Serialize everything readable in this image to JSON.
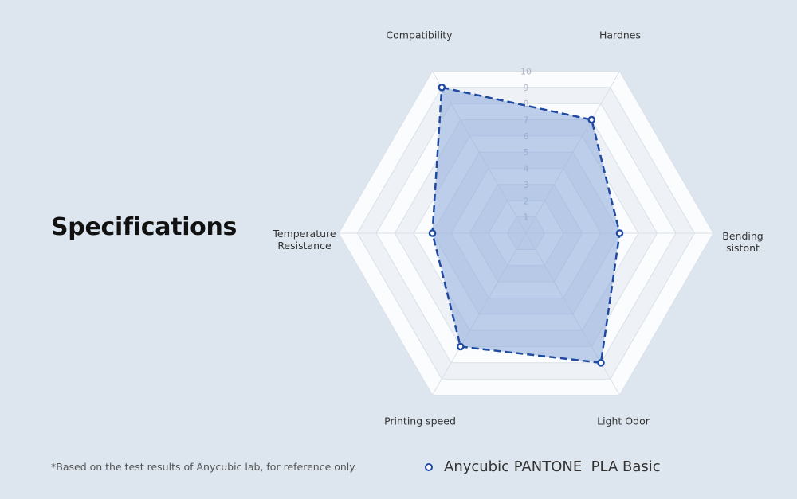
{
  "heading": "Specifications",
  "footnote": "*Based on the test results of Anycubic lab, for reference only.",
  "colors": {
    "series_stroke": "#1f4aa0",
    "series_fill": "#8aa8db",
    "grid": "#d9e0e8",
    "ring_light": "#fbfcfe",
    "ring_dark": "#eef2f7"
  },
  "chart_data": {
    "type": "radar",
    "axes": [
      "Compatibility",
      "Hardnes",
      "Bending sistont",
      "Light Odor",
      "Printing speed",
      "Temperature Resistance"
    ],
    "axis_label_lines": [
      [
        "Compatibility"
      ],
      [
        "Hardnes"
      ],
      [
        "Bending",
        "sistont"
      ],
      [
        "Light Odor"
      ],
      [
        "Printing speed"
      ],
      [
        "Temperature",
        "Resistance"
      ]
    ],
    "range": [
      0,
      10
    ],
    "ticks": [
      "1",
      "2",
      "3",
      "4",
      "5",
      "6",
      "7",
      "8",
      "9",
      "10"
    ],
    "series": [
      {
        "name": "Anycubic PANTONE  PLA Basic",
        "values": [
          9,
          7,
          5,
          8,
          7,
          5
        ]
      }
    ],
    "legend_position": "bottom"
  }
}
